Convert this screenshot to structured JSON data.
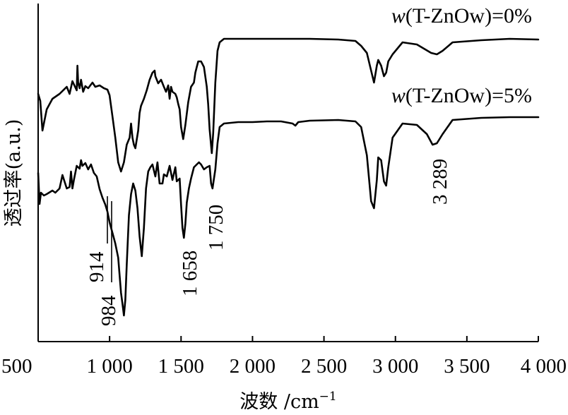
{
  "chart_data": {
    "type": "line",
    "xlabel_main": "波数 /cm",
    "xlabel_sup": "−1",
    "ylabel": "透过率(a.u.)",
    "xlim": [
      500,
      4000
    ],
    "xticks": [
      {
        "value": 500,
        "label": "500"
      },
      {
        "value": 1000,
        "label": "1 000"
      },
      {
        "value": 1500,
        "label": "1 500"
      },
      {
        "value": 2000,
        "label": "2 000"
      },
      {
        "value": 2500,
        "label": "2 500"
      },
      {
        "value": 3000,
        "label": "3 000"
      },
      {
        "value": 3500,
        "label": "3 500"
      },
      {
        "value": 4000,
        "label": "4 000"
      }
    ],
    "series": [
      {
        "name": "w(T-ZnOw)=0%",
        "label_italic": "w",
        "label_rest": "(T-ZnOw)=0%",
        "points": [
          [
            500,
            128
          ],
          [
            515,
            138
          ],
          [
            530,
            180
          ],
          [
            560,
            150
          ],
          [
            600,
            135
          ],
          [
            650,
            128
          ],
          [
            700,
            118
          ],
          [
            720,
            128
          ],
          [
            740,
            110
          ],
          [
            770,
            123
          ],
          [
            775,
            88
          ],
          [
            780,
            112
          ],
          [
            790,
            120
          ],
          [
            800,
            108
          ],
          [
            815,
            125
          ],
          [
            830,
            117
          ],
          [
            850,
            120
          ],
          [
            880,
            112
          ],
          [
            900,
            118
          ],
          [
            930,
            116
          ],
          [
            960,
            120
          ],
          [
            985,
            122
          ],
          [
            1000,
            130
          ],
          [
            1020,
            160
          ],
          [
            1040,
            190
          ],
          [
            1060,
            225
          ],
          [
            1080,
            238
          ],
          [
            1100,
            225
          ],
          [
            1120,
            200
          ],
          [
            1140,
            190
          ],
          [
            1150,
            170
          ],
          [
            1160,
            190
          ],
          [
            1170,
            200
          ],
          [
            1180,
            205
          ],
          [
            1200,
            180
          ],
          [
            1210,
            155
          ],
          [
            1220,
            145
          ],
          [
            1240,
            135
          ],
          [
            1260,
            123
          ],
          [
            1280,
            108
          ],
          [
            1300,
            98
          ],
          [
            1315,
            95
          ],
          [
            1320,
            103
          ],
          [
            1330,
            108
          ],
          [
            1340,
            113
          ],
          [
            1360,
            108
          ],
          [
            1380,
            118
          ],
          [
            1395,
            125
          ],
          [
            1410,
            116
          ],
          [
            1420,
            135
          ],
          [
            1430,
            118
          ],
          [
            1440,
            125
          ],
          [
            1460,
            128
          ],
          [
            1470,
            133
          ],
          [
            1480,
            142
          ],
          [
            1490,
            150
          ],
          [
            1500,
            175
          ],
          [
            1515,
            192
          ],
          [
            1530,
            172
          ],
          [
            1550,
            140
          ],
          [
            1570,
            118
          ],
          [
            1590,
            112
          ],
          [
            1600,
            98
          ],
          [
            1610,
            90
          ],
          [
            1620,
            82
          ],
          [
            1640,
            82
          ],
          [
            1660,
            90
          ],
          [
            1680,
            118
          ],
          [
            1690,
            143
          ],
          [
            1700,
            178
          ],
          [
            1715,
            212
          ],
          [
            1725,
            183
          ],
          [
            1740,
            112
          ],
          [
            1755,
            67
          ],
          [
            1770,
            55
          ],
          [
            1800,
            50
          ],
          [
            1900,
            50
          ],
          [
            2000,
            50
          ],
          [
            2200,
            50
          ],
          [
            2400,
            50
          ],
          [
            2600,
            51
          ],
          [
            2720,
            53
          ],
          [
            2760,
            60
          ],
          [
            2800,
            70
          ],
          [
            2830,
            95
          ],
          [
            2850,
            112
          ],
          [
            2870,
            88
          ],
          [
            2880,
            80
          ],
          [
            2900,
            88
          ],
          [
            2920,
            103
          ],
          [
            2935,
            98
          ],
          [
            2950,
            82
          ],
          [
            2980,
            72
          ],
          [
            3050,
            55
          ],
          [
            3150,
            58
          ],
          [
            3250,
            70
          ],
          [
            3290,
            72
          ],
          [
            3330,
            67
          ],
          [
            3400,
            55
          ],
          [
            3600,
            52
          ],
          [
            3800,
            50
          ],
          [
            4000,
            51
          ]
        ]
      },
      {
        "name": "w(T-ZnOw)=5%",
        "label_italic": "w",
        "label_rest": "(T-ZnOw)=5%",
        "points": [
          [
            500,
            240
          ],
          [
            510,
            284
          ],
          [
            520,
            268
          ],
          [
            540,
            272
          ],
          [
            560,
            270
          ],
          [
            600,
            265
          ],
          [
            620,
            268
          ],
          [
            650,
            262
          ],
          [
            670,
            243
          ],
          [
            700,
            262
          ],
          [
            720,
            260
          ],
          [
            730,
            238
          ],
          [
            740,
            262
          ],
          [
            750,
            250
          ],
          [
            760,
            240
          ],
          [
            770,
            230
          ],
          [
            790,
            234
          ],
          [
            800,
            222
          ],
          [
            810,
            230
          ],
          [
            830,
            226
          ],
          [
            850,
            235
          ],
          [
            870,
            228
          ],
          [
            890,
            240
          ],
          [
            910,
            245
          ],
          [
            930,
            263
          ],
          [
            950,
            275
          ],
          [
            970,
            285
          ],
          [
            985,
            295
          ],
          [
            1000,
            310
          ],
          [
            1020,
            325
          ],
          [
            1040,
            340
          ],
          [
            1060,
            360
          ],
          [
            1070,
            385
          ],
          [
            1080,
            410
          ],
          [
            1090,
            425
          ],
          [
            1100,
            442
          ],
          [
            1110,
            420
          ],
          [
            1120,
            370
          ],
          [
            1135,
            300
          ],
          [
            1150,
            270
          ],
          [
            1165,
            255
          ],
          [
            1180,
            265
          ],
          [
            1195,
            290
          ],
          [
            1210,
            330
          ],
          [
            1225,
            358
          ],
          [
            1240,
            318
          ],
          [
            1255,
            262
          ],
          [
            1270,
            238
          ],
          [
            1285,
            232
          ],
          [
            1300,
            228
          ],
          [
            1320,
            245
          ],
          [
            1335,
            225
          ],
          [
            1350,
            255
          ],
          [
            1370,
            255
          ],
          [
            1380,
            242
          ],
          [
            1400,
            245
          ],
          [
            1420,
            230
          ],
          [
            1440,
            250
          ],
          [
            1460,
            232
          ],
          [
            1470,
            252
          ],
          [
            1490,
            248
          ],
          [
            1500,
            285
          ],
          [
            1510,
            318
          ],
          [
            1520,
            332
          ],
          [
            1530,
            312
          ],
          [
            1540,
            282
          ],
          [
            1555,
            262
          ],
          [
            1570,
            248
          ],
          [
            1590,
            232
          ],
          [
            1610,
            228
          ],
          [
            1625,
            225
          ],
          [
            1640,
            228
          ],
          [
            1660,
            235
          ],
          [
            1680,
            232
          ],
          [
            1700,
            230
          ],
          [
            1710,
            255
          ],
          [
            1720,
            262
          ],
          [
            1740,
            235
          ],
          [
            1755,
            198
          ],
          [
            1770,
            175
          ],
          [
            1800,
            170
          ],
          [
            1900,
            168
          ],
          [
            2000,
            168
          ],
          [
            2100,
            167
          ],
          [
            2200,
            167
          ],
          [
            2280,
            170
          ],
          [
            2300,
            173
          ],
          [
            2320,
            168
          ],
          [
            2400,
            166
          ],
          [
            2600,
            165
          ],
          [
            2720,
            167
          ],
          [
            2760,
            175
          ],
          [
            2800,
            215
          ],
          [
            2830,
            280
          ],
          [
            2850,
            290
          ],
          [
            2870,
            250
          ],
          [
            2880,
            218
          ],
          [
            2900,
            222
          ],
          [
            2920,
            252
          ],
          [
            2935,
            258
          ],
          [
            2950,
            232
          ],
          [
            2980,
            190
          ],
          [
            3050,
            170
          ],
          [
            3150,
            172
          ],
          [
            3220,
            185
          ],
          [
            3260,
            200
          ],
          [
            3290,
            198
          ],
          [
            3330,
            185
          ],
          [
            3400,
            165
          ],
          [
            3600,
            162
          ],
          [
            3800,
            161
          ],
          [
            4000,
            161
          ]
        ]
      }
    ],
    "annotations": [
      {
        "label": "984",
        "x": 984
      },
      {
        "label": "914",
        "x": 914
      },
      {
        "label": "1 658",
        "x": 1515
      },
      {
        "label": "1 750",
        "x": 1725
      },
      {
        "label": "3 289",
        "x": 3290
      }
    ],
    "grid": false
  }
}
